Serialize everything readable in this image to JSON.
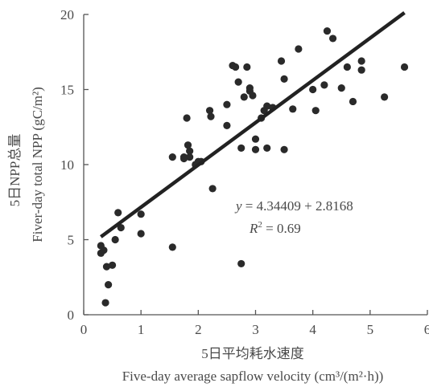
{
  "chart_data": {
    "type": "scatter",
    "xlabel_cn": "5日平均耗水速度",
    "xlabel_en": "Five-day average sapflow velocity (cm³/(m²·h))",
    "ylabel_cn": "5日NPP总量",
    "ylabel_en": "Fiver-day total NPP (gC/m²)",
    "xlim": [
      0,
      6
    ],
    "ylim": [
      0,
      20
    ],
    "x_ticks": [
      "0",
      "1",
      "2",
      "3",
      "4",
      "5",
      "6"
    ],
    "y_ticks": [
      "0",
      "5",
      "10",
      "15",
      "20"
    ],
    "fit_line": {
      "slope": 2.8168,
      "intercept": 4.34409,
      "x_start": 0.3,
      "x_end": 5.6
    },
    "equation": {
      "y_symbol": "y",
      "rhs": " = 4.34409 + 2.8168",
      "r2_symbol": "R",
      "r2_sup": "2",
      "r2_rhs": " = 0.69"
    },
    "points": [
      [
        0.3,
        4.1
      ],
      [
        0.3,
        4.6
      ],
      [
        0.35,
        4.3
      ],
      [
        0.38,
        0.8
      ],
      [
        0.4,
        3.2
      ],
      [
        0.43,
        2.0
      ],
      [
        0.5,
        3.3
      ],
      [
        0.55,
        5.0
      ],
      [
        0.6,
        6.8
      ],
      [
        0.65,
        5.8
      ],
      [
        1.0,
        6.7
      ],
      [
        1.0,
        5.4
      ],
      [
        1.55,
        10.5
      ],
      [
        1.55,
        4.5
      ],
      [
        1.75,
        10.5
      ],
      [
        1.75,
        10.4
      ],
      [
        1.8,
        13.1
      ],
      [
        1.82,
        11.3
      ],
      [
        1.85,
        10.9
      ],
      [
        1.85,
        10.5
      ],
      [
        1.95,
        10.0
      ],
      [
        2.0,
        10.2
      ],
      [
        2.05,
        10.2
      ],
      [
        2.2,
        13.6
      ],
      [
        2.22,
        13.2
      ],
      [
        2.25,
        8.4
      ],
      [
        2.5,
        12.6
      ],
      [
        2.5,
        14.0
      ],
      [
        2.6,
        16.6
      ],
      [
        2.65,
        16.5
      ],
      [
        2.7,
        15.5
      ],
      [
        2.75,
        11.1
      ],
      [
        2.75,
        3.4
      ],
      [
        2.8,
        14.5
      ],
      [
        2.85,
        16.5
      ],
      [
        2.9,
        14.9
      ],
      [
        2.9,
        15.1
      ],
      [
        2.95,
        14.6
      ],
      [
        3.0,
        11.7
      ],
      [
        3.0,
        11.0
      ],
      [
        3.1,
        13.1
      ],
      [
        3.15,
        13.6
      ],
      [
        3.2,
        13.9
      ],
      [
        3.2,
        11.1
      ],
      [
        3.3,
        13.8
      ],
      [
        3.45,
        16.9
      ],
      [
        3.5,
        15.7
      ],
      [
        3.5,
        11.0
      ],
      [
        3.65,
        13.7
      ],
      [
        3.75,
        17.7
      ],
      [
        4.0,
        15.0
      ],
      [
        4.05,
        13.6
      ],
      [
        4.2,
        15.3
      ],
      [
        4.25,
        18.9
      ],
      [
        4.35,
        18.4
      ],
      [
        4.5,
        15.1
      ],
      [
        4.6,
        16.5
      ],
      [
        4.7,
        14.2
      ],
      [
        4.85,
        16.3
      ],
      [
        4.85,
        16.9
      ],
      [
        5.25,
        14.5
      ],
      [
        5.6,
        16.5
      ]
    ]
  }
}
